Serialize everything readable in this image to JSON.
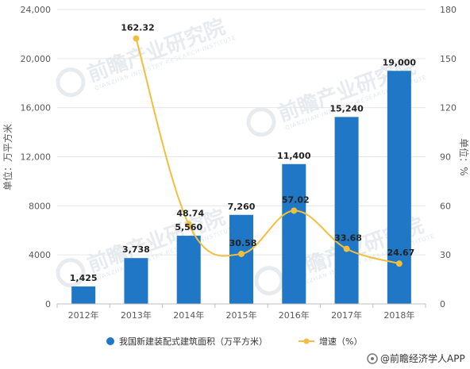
{
  "chart_data": {
    "type": "bar",
    "categories": [
      "2012年",
      "2013年",
      "2014年",
      "2015年",
      "2016年",
      "2017年",
      "2018年"
    ],
    "series": [
      {
        "name": "我国新建装配式建筑面积（万平方米）",
        "type": "bar",
        "axis": "left",
        "values": [
          1425,
          3738,
          5560,
          7260,
          11400,
          15240,
          19000
        ],
        "labels": [
          "1,425",
          "3,738",
          "5,560",
          "7,260",
          "11,400",
          "15,240",
          "19,000"
        ]
      },
      {
        "name": "增速（%）",
        "type": "line",
        "axis": "right",
        "values": [
          null,
          162.32,
          48.74,
          30.58,
          57.02,
          33.68,
          24.67
        ],
        "labels": [
          "",
          "162.32",
          "48.74",
          "30.58",
          "57.02",
          "33.68",
          "24.67"
        ]
      }
    ],
    "ylabel": "单位：万平方米",
    "y2label": "单位：%",
    "ylim": [
      0,
      24000
    ],
    "y2lim": [
      0,
      180
    ],
    "yticks": [
      "0",
      "4000",
      "8000",
      "12,000",
      "16,000",
      "20,000",
      "24,000"
    ],
    "y2ticks": [
      "0",
      "30",
      "60",
      "90",
      "120",
      "150",
      "180"
    ],
    "grid": true,
    "legend": "bottom",
    "colors": {
      "bar": "#1f77c6",
      "line": "#f2be3e"
    }
  },
  "watermark": {
    "text": "前瞻产业研究院",
    "sub": "QIANZHAN INDUSTRY RESEARCH INSTITUTE"
  },
  "footer": {
    "text": "@前瞻经济学人APP"
  }
}
